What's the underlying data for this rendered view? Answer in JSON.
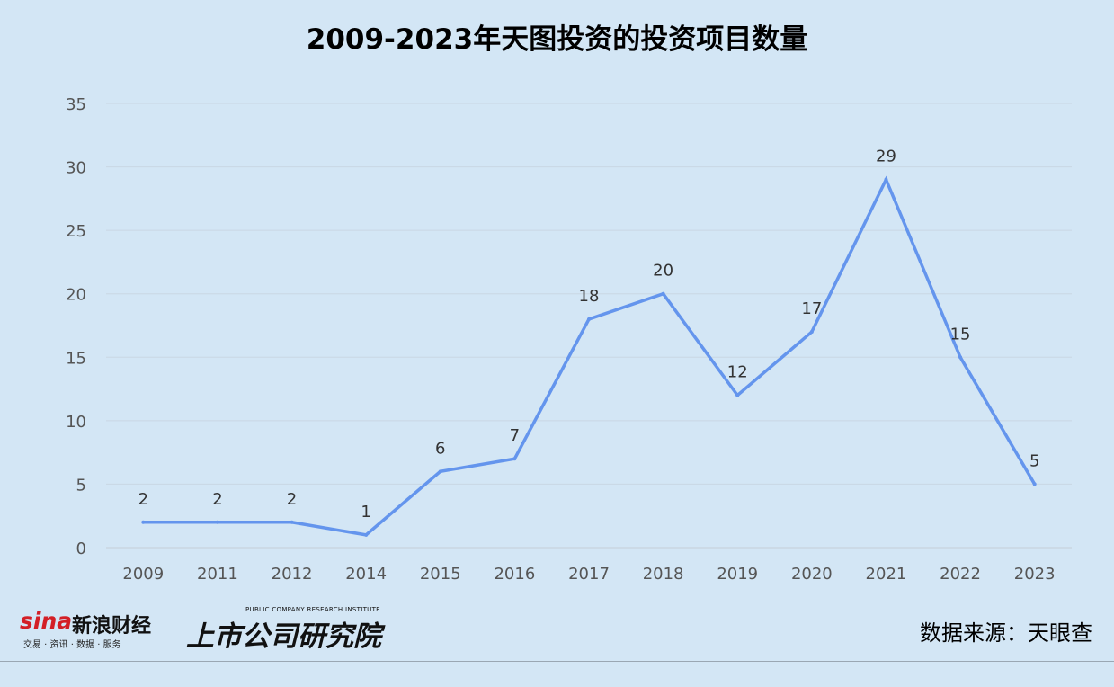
{
  "chart_data": {
    "type": "line",
    "title": "2009-2023年天图投资的投资项目数量",
    "categories": [
      "2009",
      "2011",
      "2012",
      "2014",
      "2015",
      "2016",
      "2017",
      "2018",
      "2019",
      "2020",
      "2021",
      "2022",
      "2023"
    ],
    "series": [
      {
        "values": [
          2,
          2,
          2,
          1,
          6,
          7,
          18,
          20,
          12,
          17,
          29,
          15,
          5
        ]
      }
    ],
    "ylim": [
      0,
      35
    ],
    "yticks": [
      0,
      5,
      10,
      15,
      20,
      25,
      30,
      35
    ],
    "xlabel": "",
    "ylabel": "",
    "grid": true,
    "line_color": "#6495ed",
    "data_labels": true
  },
  "footer": {
    "sina_logo_text": "sina",
    "sina_cn": "新浪财经",
    "sina_sub": "交易 · 资讯 · 数据 · 服务",
    "institute_en": "PUBLIC COMPANY RESEARCH INSTITUTE",
    "institute_cn": "上市公司研究院",
    "source": "数据来源：天眼查"
  }
}
